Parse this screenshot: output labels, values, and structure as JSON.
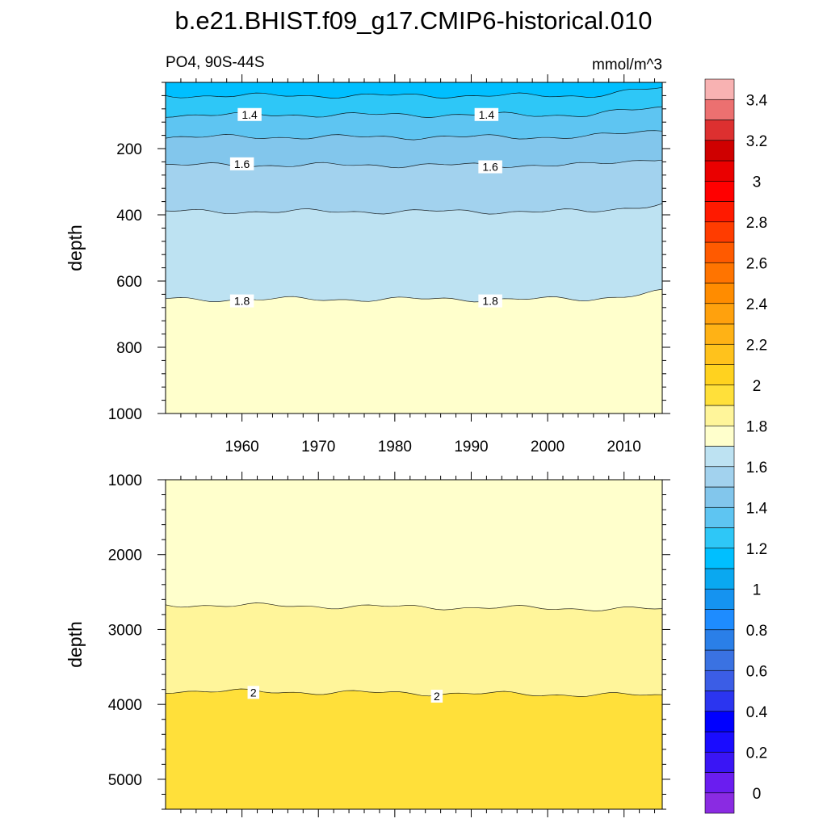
{
  "title": "b.e21.BHIST.f09_g17.CMIP6-historical.010",
  "chart_data": {
    "type": "contour",
    "variable_label": "PO4, 90S-44S",
    "units": "mmol/m^3",
    "xticks": [
      1960,
      1970,
      1980,
      1990,
      2000,
      2010
    ],
    "xlim": [
      1950,
      2015
    ],
    "colorbar": {
      "levels": [
        0,
        0.1,
        0.2,
        0.3,
        0.4,
        0.5,
        0.6,
        0.7,
        0.8,
        0.9,
        1,
        1.1,
        1.2,
        1.3,
        1.4,
        1.5,
        1.6,
        1.7,
        1.8,
        1.9,
        2,
        2.1,
        2.2,
        2.3,
        2.4,
        2.5,
        2.6,
        2.7,
        2.8,
        2.9,
        3,
        3.1,
        3.2,
        3.3,
        3.4,
        3.5
      ],
      "colors": [
        "#8a2be2",
        "#6a1df0",
        "#3a15f5",
        "#1a0cff",
        "#0000ff",
        "#2b35f0",
        "#3b5de6",
        "#3a72e2",
        "#2a7fe8",
        "#1e8cff",
        "#1593f0",
        "#0aa8f0",
        "#00bfff",
        "#2ec7f7",
        "#5ec5f2",
        "#82c6ec",
        "#a2d2ee",
        "#bde2f2",
        "#ffffcc",
        "#fff59a",
        "#ffe03a",
        "#ffd21f",
        "#ffc21c",
        "#ffb215",
        "#ffa10d",
        "#ff8c00",
        "#ff7400",
        "#ff5a00",
        "#ff3c00",
        "#ff1a00",
        "#ff0000",
        "#ea0000",
        "#cf0000",
        "#dd3030",
        "#ec7070",
        "#f8b2b2"
      ],
      "tick_labels": [
        "0",
        "0.2",
        "0.4",
        "0.6",
        "0.8",
        "1",
        "1.2",
        "1.4",
        "1.6",
        "1.8",
        "2",
        "2.2",
        "2.4",
        "2.6",
        "2.8",
        "3",
        "3.2",
        "3.4"
      ]
    },
    "panels": [
      {
        "ylabel": "depth",
        "ylim": [
          0,
          1000
        ],
        "yticks": [
          200,
          400,
          600,
          800,
          1000
        ],
        "contours": [
          {
            "level": 1.3,
            "mean_depth": 40
          },
          {
            "level": 1.4,
            "mean_depth": 98
          },
          {
            "level": 1.5,
            "mean_depth": 165
          },
          {
            "level": 1.6,
            "mean_depth": 250
          },
          {
            "level": 1.7,
            "mean_depth": 390
          },
          {
            "level": 1.8,
            "mean_depth": 655
          }
        ],
        "contour_labels": [
          {
            "text": "1.4",
            "year": 1961,
            "depth": 97
          },
          {
            "text": "1.4",
            "year": 1992,
            "depth": 97
          },
          {
            "text": "1.6",
            "year": 1960,
            "depth": 246
          },
          {
            "text": "1.6",
            "year": 1992.5,
            "depth": 255
          },
          {
            "text": "1.8",
            "year": 1960,
            "depth": 660
          },
          {
            "text": "1.8",
            "year": 1992.5,
            "depth": 660
          }
        ]
      },
      {
        "ylabel": "depth",
        "ylim": [
          1000,
          5400
        ],
        "yticks": [
          1000,
          2000,
          3000,
          4000,
          5000
        ],
        "contours": [
          {
            "level": 1.9,
            "mean_depth": 2700
          },
          {
            "level": 2.0,
            "mean_depth": 3850
          }
        ],
        "contour_labels": [
          {
            "text": "2",
            "year": 1961.5,
            "depth": 3840
          },
          {
            "text": "2",
            "year": 1985.5,
            "depth": 3890
          }
        ]
      }
    ]
  }
}
